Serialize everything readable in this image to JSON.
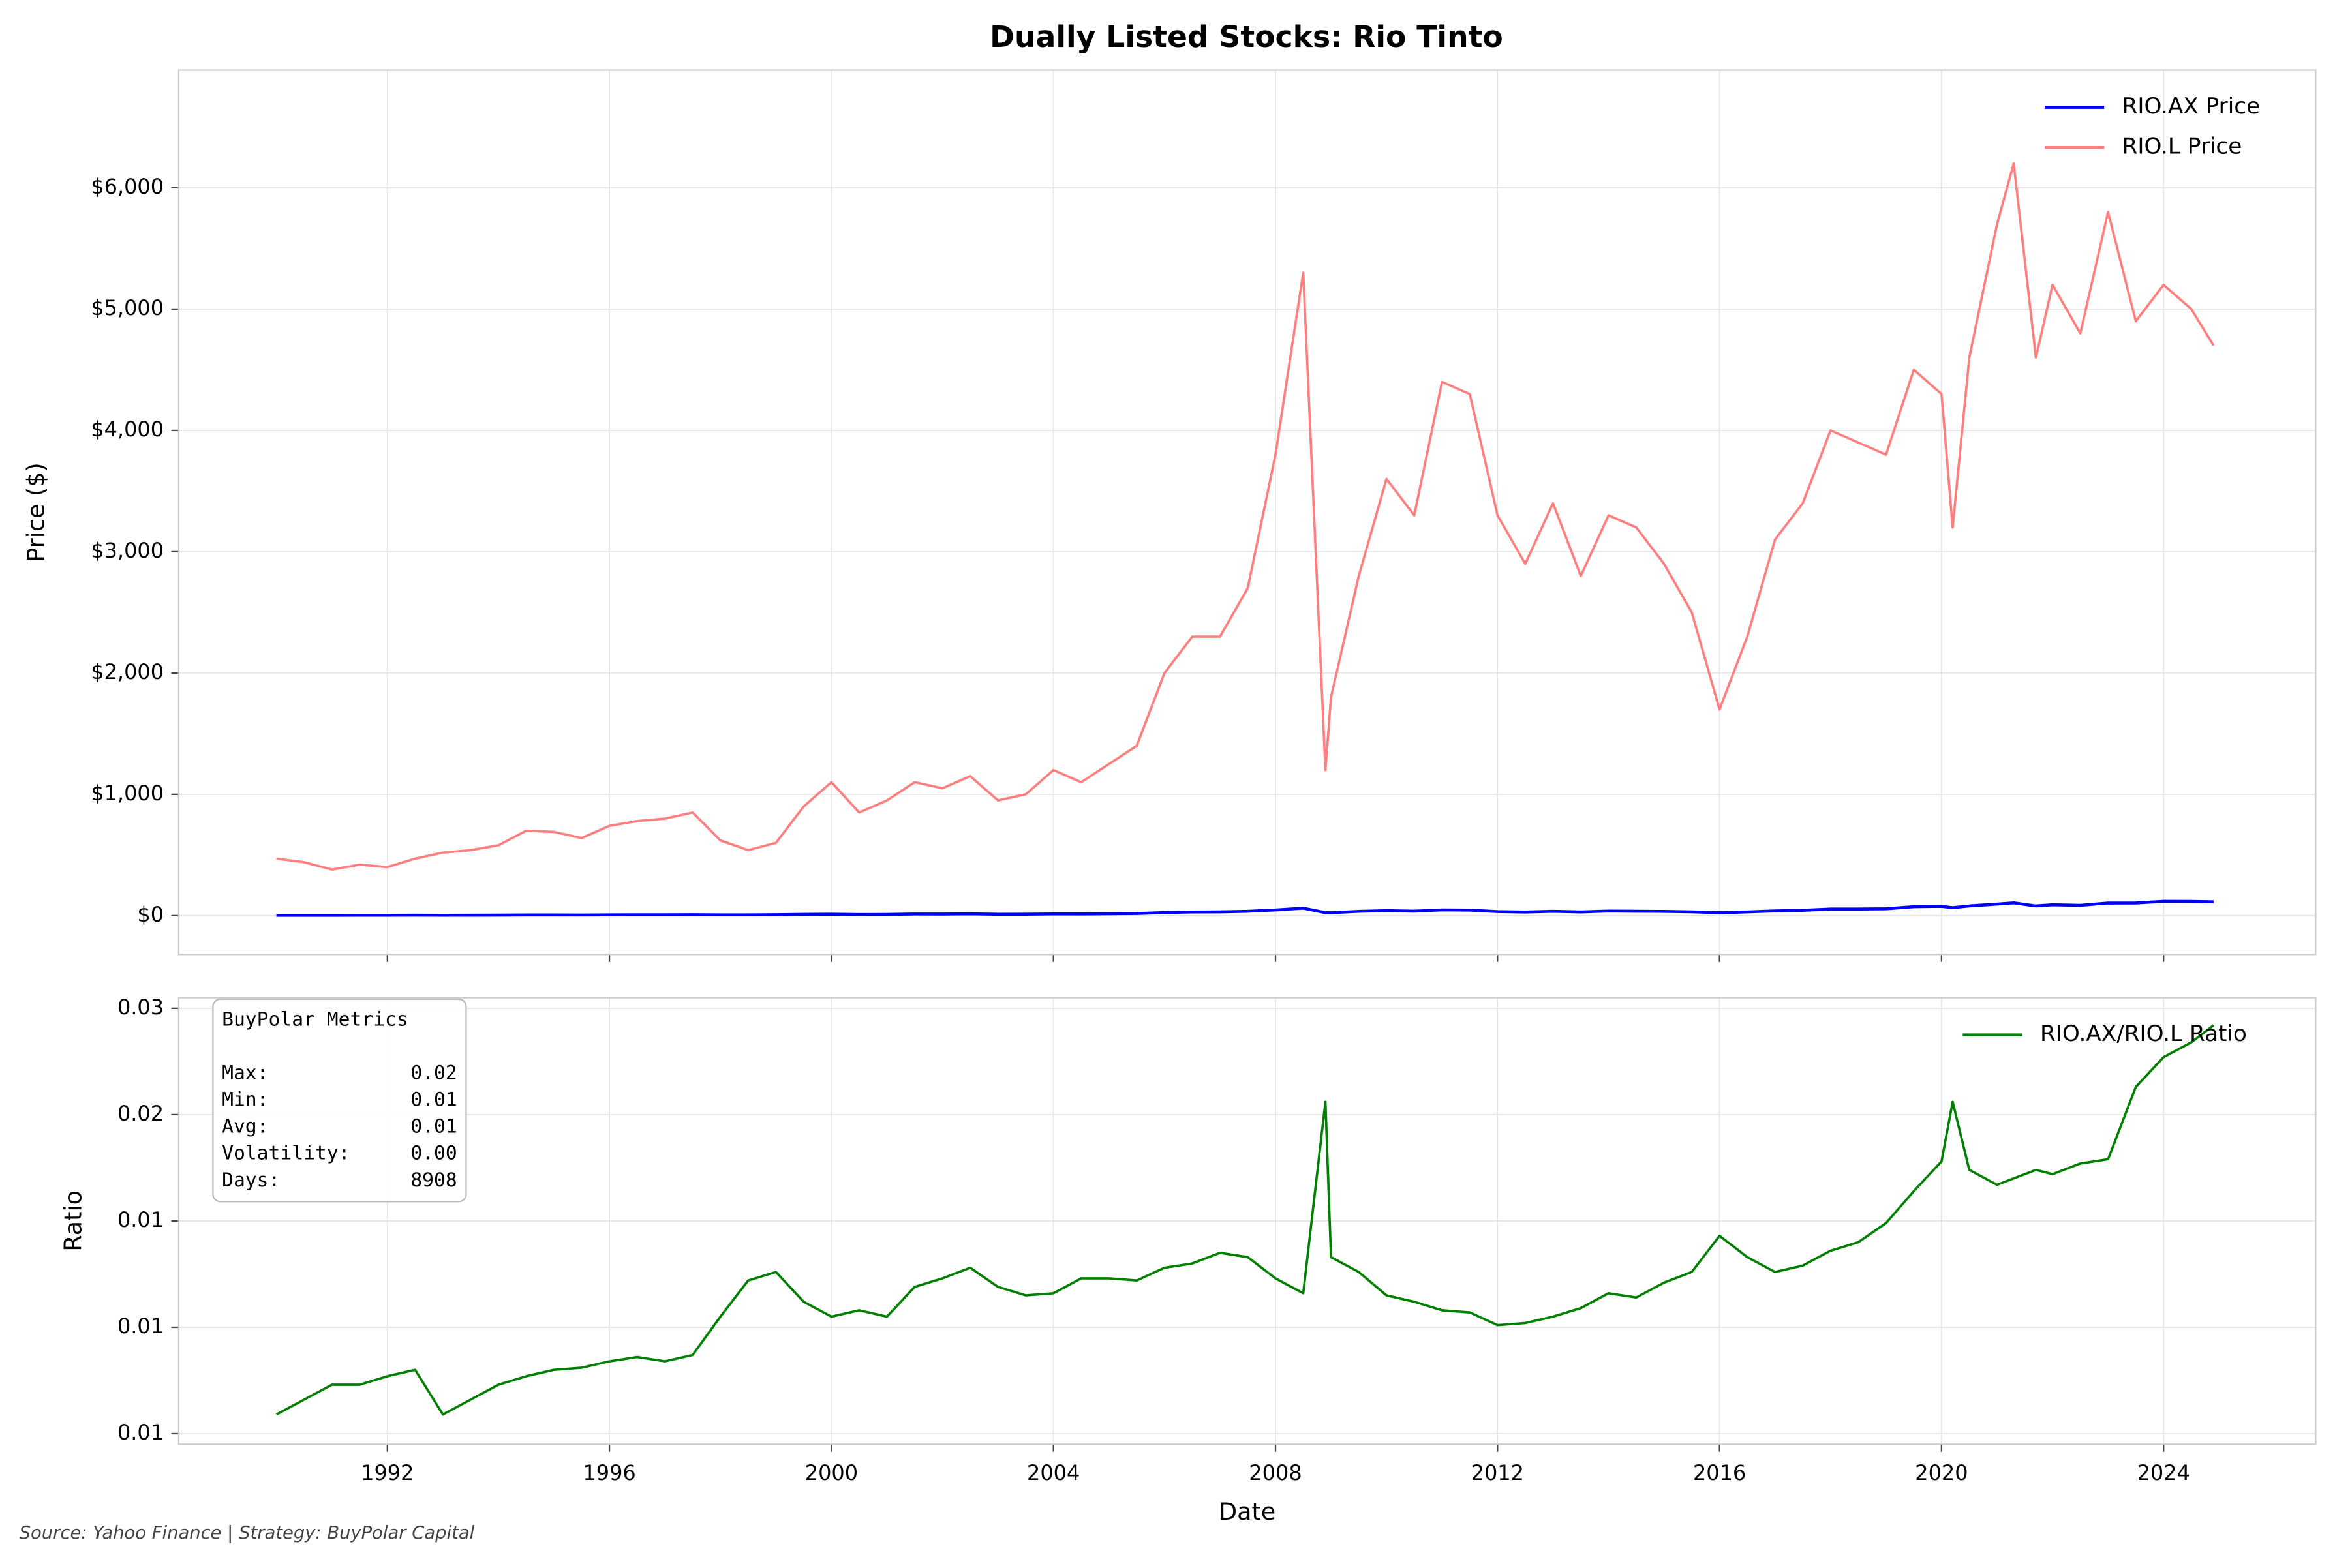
{
  "chart_data": [
    {
      "type": "line",
      "title": "Dually Listed Stocks: Rio Tinto",
      "ylabel": "Price ($)",
      "x": [
        1990,
        1990.5,
        1991,
        1991.5,
        1992,
        1992.5,
        1993,
        1993.5,
        1994,
        1994.5,
        1995,
        1995.5,
        1996,
        1996.5,
        1997,
        1997.5,
        1998,
        1998.5,
        1999,
        1999.5,
        2000,
        2000.5,
        2001,
        2001.5,
        2002,
        2002.5,
        2003,
        2003.5,
        2004,
        2004.5,
        2005,
        2005.5,
        2006,
        2006.5,
        2007,
        2007.5,
        2008,
        2008.5,
        2008.9,
        2009,
        2009.5,
        2010,
        2010.5,
        2011,
        2011.5,
        2012,
        2012.5,
        2013,
        2013.5,
        2014,
        2014.5,
        2015,
        2015.5,
        2016,
        2016.5,
        2017,
        2017.5,
        2018,
        2018.5,
        2019,
        2019.5,
        2020,
        2020.2,
        2020.5,
        2021,
        2021.3,
        2021.7,
        2022,
        2022.5,
        2023,
        2023.5,
        2024,
        2024.5,
        2024.9
      ],
      "series": [
        {
          "name": "RIO.AX Price",
          "color": "#0000ff",
          "values": [
            2.8,
            2.9,
            2.8,
            3.1,
            3.1,
            3.8,
            3.1,
            3.6,
            4.2,
            5.4,
            5.5,
            5.2,
            6.2,
            6.7,
            6.7,
            7.4,
            6.5,
            6.6,
            7.6,
            10.1,
            11.6,
            9.2,
            10.0,
            13.1,
            12.9,
            14.7,
            11.3,
            11.5,
            13.9,
            13.5,
            15.4,
            17.1,
            25.6,
            29.9,
            31.1,
            35.9,
            46.7,
            61.5,
            24.7,
            23.9,
            35.3,
            41.4,
            37.0,
            47.5,
            46.0,
            33.3,
            29.6,
            35.7,
            30.5,
            38.3,
            36.5,
            35.1,
            31.5,
            24.3,
            30.6,
            39.1,
            43.9,
            54.4,
            54.6,
            56.6,
            73.8,
            76.5,
            65.9,
            80.0,
            95.2,
            105.4,
            80.0,
            89.4,
            85.0,
            103.8,
            104.4,
            118.0,
            117.0,
            113.7
          ]
        },
        {
          "name": "RIO.L Price",
          "color": "#ff7f7f",
          "values": [
            470,
            440,
            380,
            420,
            400,
            470,
            520,
            540,
            580,
            700,
            690,
            640,
            740,
            780,
            800,
            850,
            620,
            540,
            600,
            900,
            1100,
            850,
            950,
            1100,
            1050,
            1150,
            950,
            1000,
            1200,
            1100,
            1250,
            1400,
            2000,
            2300,
            2300,
            2700,
            3800,
            5300,
            1200,
            1800,
            2800,
            3600,
            3300,
            4400,
            4300,
            3300,
            2900,
            3400,
            2800,
            3300,
            3200,
            2900,
            2500,
            1700,
            2300,
            3100,
            3400,
            4000,
            3900,
            3800,
            4500,
            4300,
            3200,
            4600,
            5700,
            6200,
            4600,
            5200,
            4800,
            5800,
            4900,
            5200,
            5000,
            4700
          ]
        }
      ],
      "xlim": [
        1988.24,
        2026.74
      ],
      "ylim": [
        -320,
        6970
      ],
      "yticks": [
        {
          "value": 0,
          "label": "$0"
        },
        {
          "value": 1000,
          "label": "$1,000"
        },
        {
          "value": 2000,
          "label": "$2,000"
        },
        {
          "value": 3000,
          "label": "$3,000"
        },
        {
          "value": 4000,
          "label": "$4,000"
        },
        {
          "value": 5000,
          "label": "$5,000"
        },
        {
          "value": 6000,
          "label": "$6,000"
        }
      ],
      "grid": true,
      "legend": "upper right"
    },
    {
      "type": "line",
      "xlabel": "Date",
      "ylabel": "Ratio",
      "x": [
        1990,
        1990.5,
        1991,
        1991.5,
        1992,
        1992.5,
        1993,
        1993.5,
        1994,
        1994.5,
        1995,
        1995.5,
        1996,
        1996.5,
        1997,
        1997.5,
        1998,
        1998.5,
        1999,
        1999.5,
        2000,
        2000.5,
        2001,
        2001.5,
        2002,
        2002.5,
        2003,
        2003.5,
        2004,
        2004.5,
        2005,
        2005.5,
        2006,
        2006.5,
        2007,
        2007.5,
        2008,
        2008.5,
        2008.9,
        2009,
        2009.5,
        2010,
        2010.5,
        2011,
        2011.5,
        2012,
        2012.5,
        2013,
        2013.5,
        2014,
        2014.5,
        2015,
        2015.5,
        2016,
        2016.5,
        2017,
        2017.5,
        2018,
        2018.5,
        2019,
        2019.5,
        2020,
        2020.2,
        2020.5,
        2021,
        2021.3,
        2021.7,
        2022,
        2022.5,
        2023,
        2023.5,
        2024,
        2024.5,
        2024.9
      ],
      "series": [
        {
          "name": "RIO.AX/RIO.L Ratio",
          "color": "#008000",
          "values": [
            0.0059,
            0.0066,
            0.0073,
            0.0073,
            0.0077,
            0.008,
            0.0059,
            0.0066,
            0.0073,
            0.0077,
            0.008,
            0.0081,
            0.0084,
            0.0086,
            0.0084,
            0.0087,
            0.0105,
            0.0122,
            0.0126,
            0.0112,
            0.0105,
            0.0108,
            0.0105,
            0.0119,
            0.0123,
            0.0128,
            0.0119,
            0.0115,
            0.0116,
            0.0123,
            0.0123,
            0.0122,
            0.0128,
            0.013,
            0.0135,
            0.0133,
            0.0123,
            0.0116,
            0.0206,
            0.0133,
            0.0126,
            0.0115,
            0.0112,
            0.0108,
            0.0107,
            0.0101,
            0.0102,
            0.0105,
            0.0109,
            0.0116,
            0.0114,
            0.0121,
            0.0126,
            0.0143,
            0.0133,
            0.0126,
            0.0129,
            0.0136,
            0.014,
            0.0149,
            0.0164,
            0.0178,
            0.0206,
            0.0174,
            0.0167,
            0.017,
            0.0174,
            0.0172,
            0.0177,
            0.0179,
            0.0213,
            0.0227,
            0.0234,
            0.0242
          ]
        }
      ],
      "xlim": [
        1988.24,
        2026.74
      ],
      "ylim": [
        0.0045,
        0.0255
      ],
      "xticks": [
        1992,
        1996,
        2000,
        2004,
        2008,
        2012,
        2016,
        2020,
        2024
      ],
      "yticks": [
        {
          "value": 0.005,
          "label": "0.01"
        },
        {
          "value": 0.01,
          "label": "0.01"
        },
        {
          "value": 0.015,
          "label": "0.01"
        },
        {
          "value": 0.02,
          "label": "0.02"
        },
        {
          "value": 0.025,
          "label": "0.03"
        }
      ],
      "grid": true,
      "legend": "upper right",
      "metrics": {
        "title": "BuyPolar Metrics",
        "rows": [
          {
            "label": "Max:",
            "value": "0.02"
          },
          {
            "label": "Min:",
            "value": "0.01"
          },
          {
            "label": "Avg:",
            "value": "0.01"
          },
          {
            "label": "Volatility:",
            "value": "0.00"
          },
          {
            "label": "Days:",
            "value": "8908"
          }
        ]
      }
    }
  ],
  "source": "Source: Yahoo Finance | Strategy: BuyPolar Capital"
}
